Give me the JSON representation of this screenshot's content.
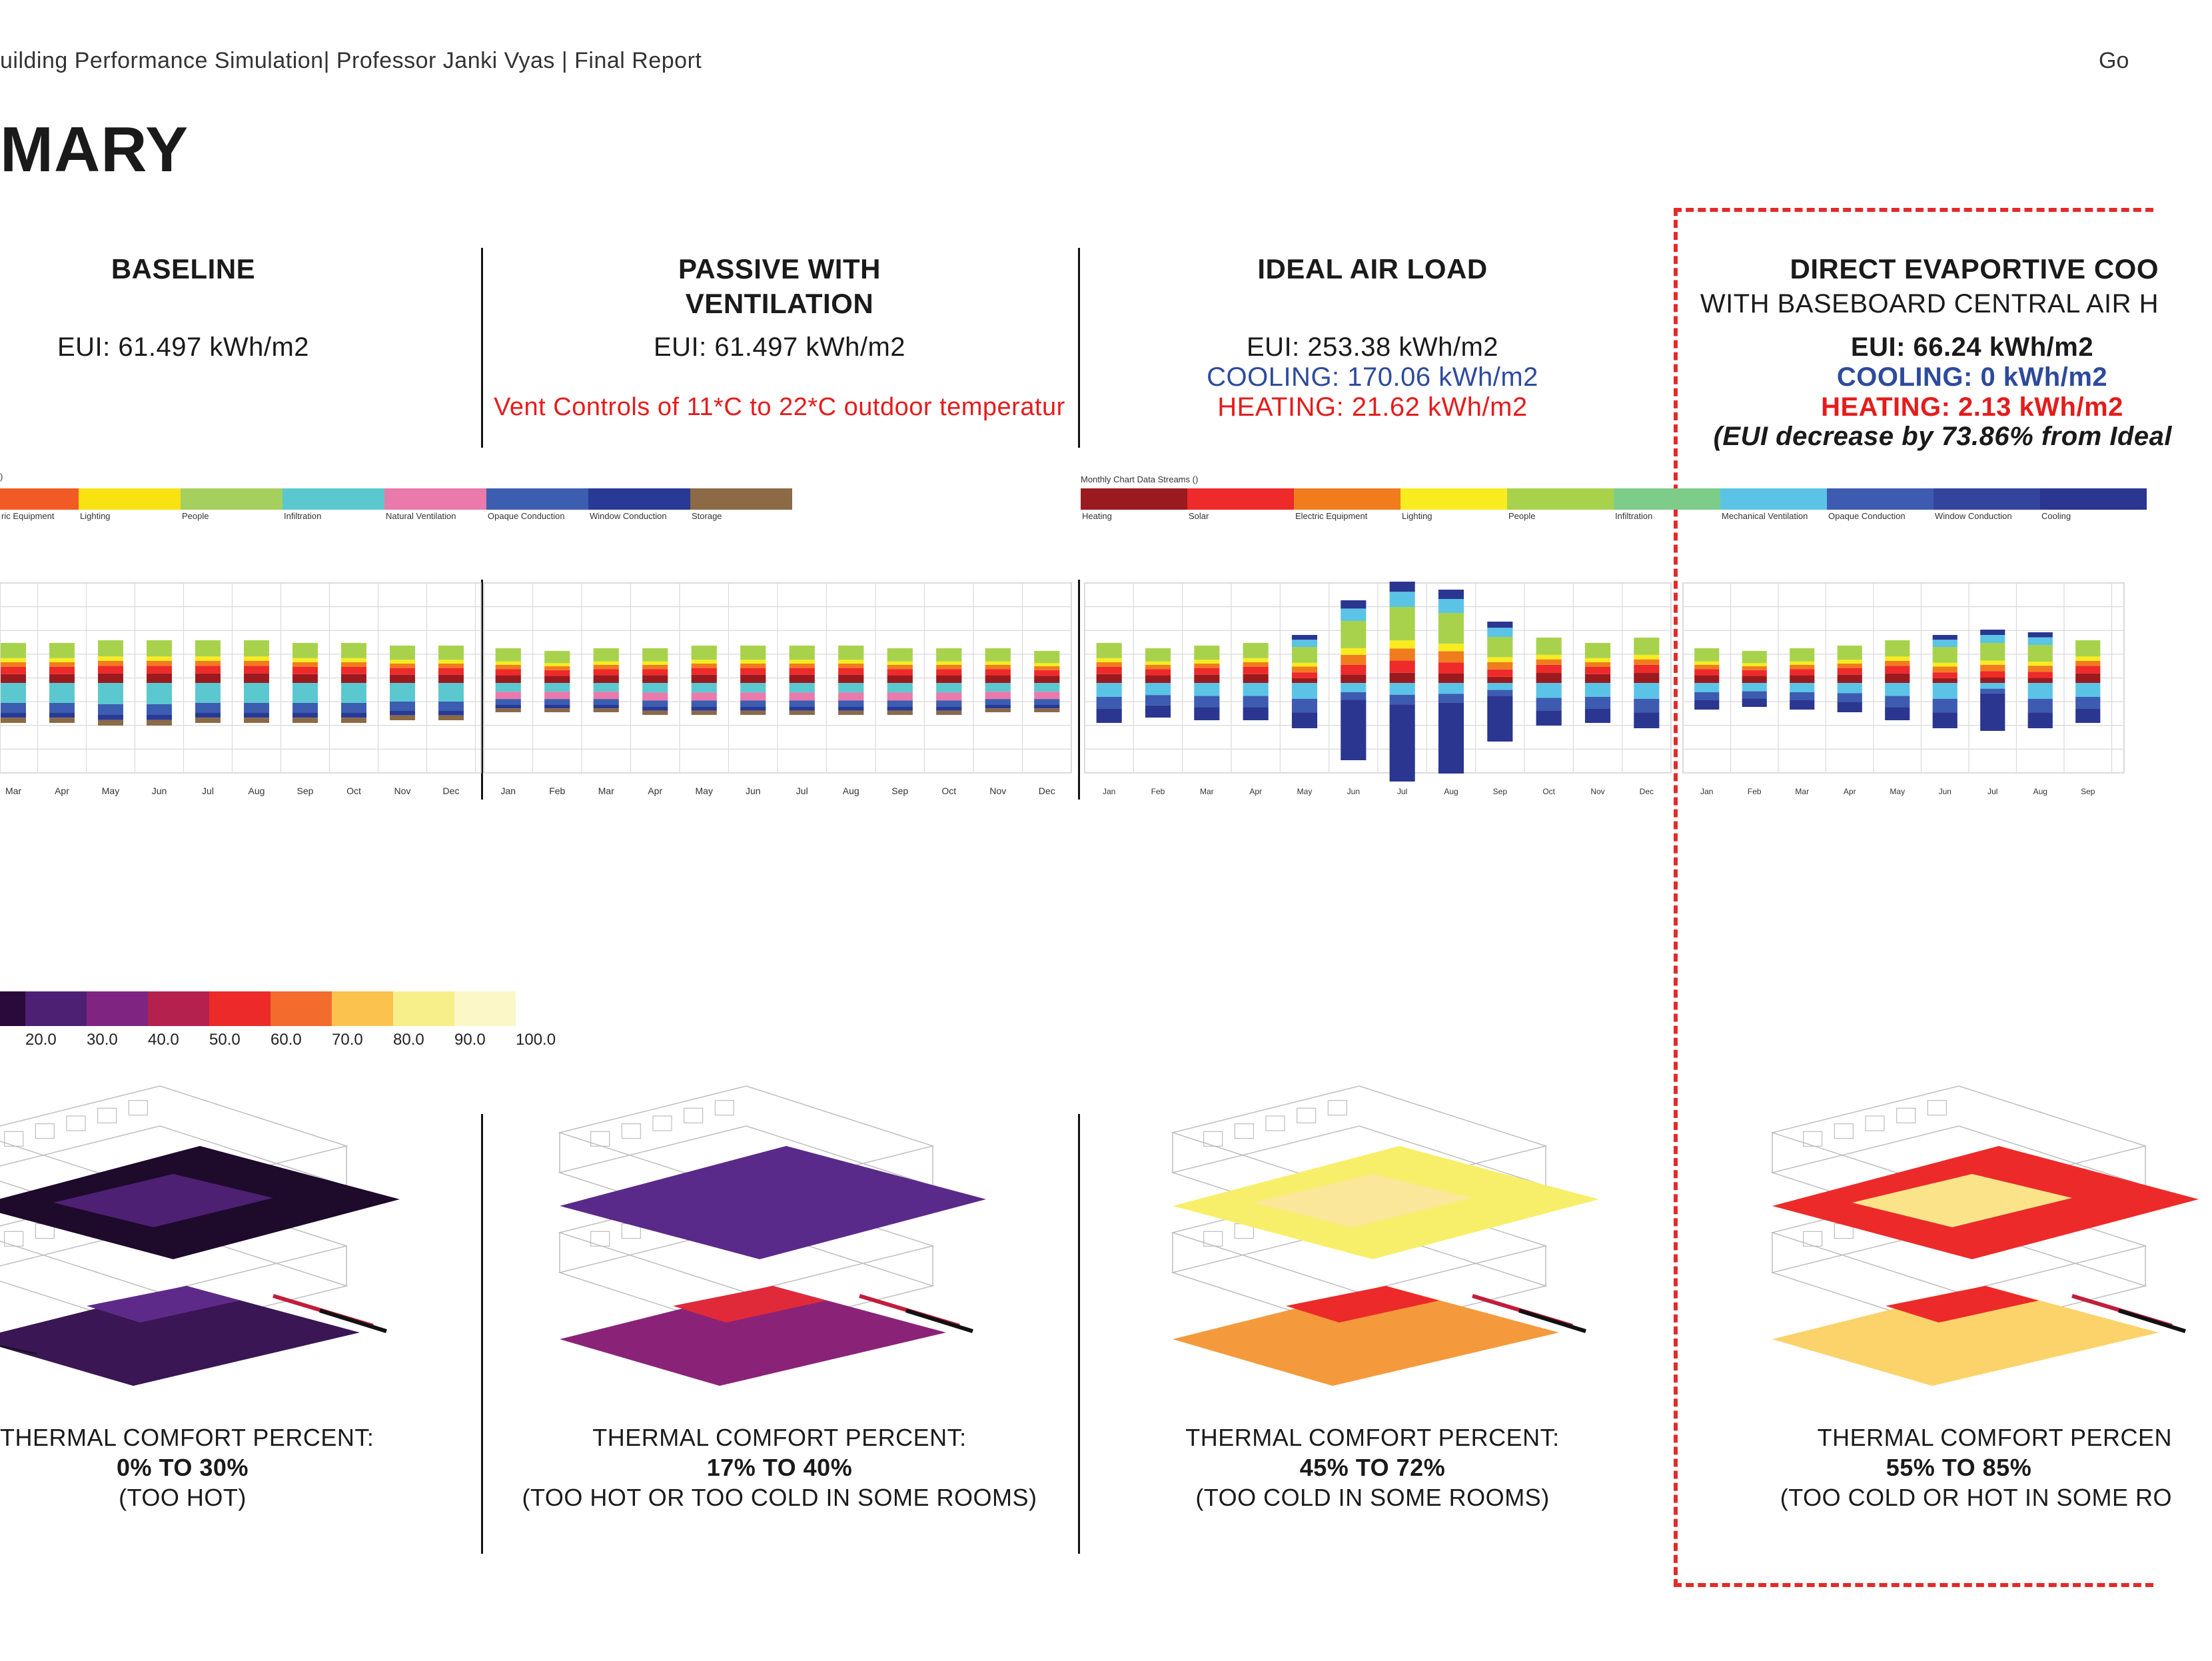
{
  "header": {
    "left": "uilding Performance Simulation| Professor Janki Vyas | Final Report",
    "right": "Go"
  },
  "page_title": "MARY",
  "columns": [
    {
      "title": "BASELINE",
      "subtitle": "",
      "eui": "EUI: 61.497  kWh/m2",
      "cooling": "",
      "heating": "",
      "note": "",
      "comfort_label": "THERMAL COMFORT PERCENT:",
      "comfort_range": "0% TO 30%",
      "comfort_note": "(TOO HOT)"
    },
    {
      "title": "PASSIVE WITH",
      "subtitle": "VENTILATION",
      "eui": "EUI: 61.497  kWh/m2",
      "cooling": "",
      "heating": "",
      "note": "Vent Controls of 11*C  to 22*C outdoor temperatur",
      "comfort_label": "THERMAL COMFORT PERCENT:",
      "comfort_range": "17% TO 40%",
      "comfort_note": "(TOO HOT OR TOO COLD IN SOME ROOMS)"
    },
    {
      "title": "IDEAL AIR LOAD",
      "subtitle": "",
      "eui": "EUI: 253.38 kWh/m2",
      "cooling": "COOLING: 170.06 kWh/m2",
      "heating": "HEATING: 21.62 kWh/m2",
      "note": "",
      "comfort_label": "THERMAL COMFORT PERCENT:",
      "comfort_range": "45% TO 72%",
      "comfort_note": "(TOO COLD IN SOME ROOMS)"
    },
    {
      "title": "DIRECT EVAPORTIVE COO",
      "subtitle": "WITH BASEBOARD CENTRAL AIR H",
      "eui": "EUI: 66.24 kWh/m2",
      "cooling": "COOLING:  0 kWh/m2",
      "heating": "HEATING: 2.13 kWh/m2",
      "note": "(EUI decrease by 73.86% from Ideal",
      "comfort_label": "THERMAL COMFORT PERCEN",
      "comfort_range": "55% TO 85%",
      "comfort_note": "(TOO COLD OR HOT IN SOME RO"
    }
  ],
  "legend_left": {
    "corner": ")",
    "items": [
      {
        "label": "ric Equipment",
        "color": "#f15a24"
      },
      {
        "label": "Lighting",
        "color": "#f9e211"
      },
      {
        "label": "People",
        "color": "#a6d05e"
      },
      {
        "label": "Infiltration",
        "color": "#5bc8d0"
      },
      {
        "label": "Natural Ventilation",
        "color": "#e97aab"
      },
      {
        "label": "Opaque Conduction",
        "color": "#3c5db0"
      },
      {
        "label": "Window Conduction",
        "color": "#283a95"
      },
      {
        "label": "Storage",
        "color": "#8b6a45"
      }
    ]
  },
  "legend_right": {
    "title": "Monthly Chart Data Streams ()",
    "items": [
      {
        "label": "Heating",
        "color": "#9a1a1f"
      },
      {
        "label": "Solar",
        "color": "#ee2a2a"
      },
      {
        "label": "Electric Equipment",
        "color": "#f07c1e"
      },
      {
        "label": "Lighting",
        "color": "#f8ec1f"
      },
      {
        "label": "People",
        "color": "#a9d24c"
      },
      {
        "label": "Infiltration",
        "color": "#7dcc8a"
      },
      {
        "label": "Mechanical Ventilation",
        "color": "#5bc4e6"
      },
      {
        "label": "Opaque Conduction",
        "color": "#3d5bb0"
      },
      {
        "label": "Window Conduction",
        "color": "#33449c"
      },
      {
        "label": "Cooling",
        "color": "#2a3690"
      }
    ]
  },
  "chart_data": [
    {
      "type": "bar",
      "name_hint": "baseline monthly energy balance",
      "categories": [
        "Mar",
        "Apr",
        "May",
        "Jun",
        "Jul",
        "Aug",
        "Sep",
        "Oct",
        "Nov",
        "Dec"
      ],
      "note": "stacked positive/negative monthly energy balance; unlabeled y-axis",
      "pos_height": [
        0.3,
        0.3,
        0.32,
        0.32,
        0.32,
        0.32,
        0.3,
        0.3,
        0.28,
        0.28
      ],
      "neg_height": [
        0.3,
        0.3,
        0.32,
        0.32,
        0.3,
        0.3,
        0.3,
        0.3,
        0.28,
        0.28
      ]
    },
    {
      "type": "bar",
      "name_hint": "passive with ventilation monthly energy balance",
      "categories": [
        "Jan",
        "Feb",
        "Mar",
        "Apr",
        "May",
        "Jun",
        "Jul",
        "Aug",
        "Sep",
        "Oct",
        "Nov",
        "Dec"
      ],
      "pos_height": [
        0.26,
        0.24,
        0.26,
        0.26,
        0.28,
        0.28,
        0.28,
        0.28,
        0.26,
        0.26,
        0.26,
        0.24
      ],
      "neg_height": [
        0.22,
        0.22,
        0.22,
        0.24,
        0.24,
        0.24,
        0.24,
        0.24,
        0.24,
        0.24,
        0.22,
        0.22
      ]
    },
    {
      "type": "bar",
      "name_hint": "ideal air load monthly energy balance",
      "categories": [
        "Jan",
        "Feb",
        "Mar",
        "Apr",
        "May",
        "Jun",
        "Jul",
        "Aug",
        "Sep",
        "Oct",
        "Nov",
        "Dec"
      ],
      "pos_height": [
        0.3,
        0.26,
        0.28,
        0.3,
        0.36,
        0.62,
        0.76,
        0.7,
        0.46,
        0.34,
        0.3,
        0.34
      ],
      "neg_height": [
        0.3,
        0.26,
        0.28,
        0.28,
        0.34,
        0.58,
        0.74,
        0.68,
        0.44,
        0.32,
        0.3,
        0.34
      ]
    },
    {
      "type": "bar",
      "name_hint": "direct evaporative cooling monthly energy balance",
      "categories": [
        "Jan",
        "Feb",
        "Mar",
        "Apr",
        "May",
        "Jun",
        "Jul",
        "Aug",
        "Sep"
      ],
      "pos_height": [
        0.26,
        0.24,
        0.26,
        0.28,
        0.32,
        0.36,
        0.4,
        0.38,
        0.32
      ],
      "neg_height": [
        0.2,
        0.18,
        0.2,
        0.22,
        0.28,
        0.34,
        0.36,
        0.34,
        0.3
      ]
    }
  ],
  "comfort_scale": {
    "ticks": [
      "20.0",
      "30.0",
      "40.0",
      "50.0",
      "60.0",
      "70.0",
      "80.0",
      "90.0",
      "100.0"
    ],
    "colors": [
      "#2a0a3a",
      "#4d2073",
      "#7f2481",
      "#b5214e",
      "#ec2a2a",
      "#f46b2e",
      "#fbc24e",
      "#f7ef8a",
      "#fbf7c6"
    ]
  },
  "colors": {
    "accent_red": "#e51c1c",
    "accent_blue": "#2e4a9c",
    "dashed_highlight": "#e32a2a"
  }
}
